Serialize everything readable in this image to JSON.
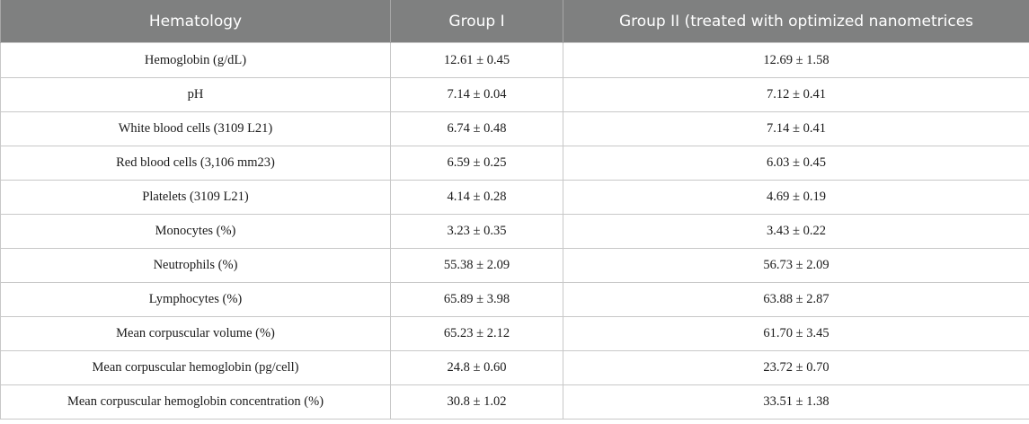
{
  "table": {
    "headers": [
      "Hematology",
      "Group I",
      "Group II (treated with optimized nanometrices"
    ],
    "rows": [
      [
        "Hemoglobin (g/dL)",
        "12.61 ± 0.45",
        "12.69 ± 1.58"
      ],
      [
        "pH",
        "7.14 ± 0.04",
        "7.12 ± 0.41"
      ],
      [
        "White blood cells (3109 L21)",
        "6.74 ± 0.48",
        "7.14 ± 0.41"
      ],
      [
        "Red blood cells (3,106 mm23)",
        "6.59 ± 0.25",
        "6.03 ± 0.45"
      ],
      [
        "Platelets (3109 L21)",
        "4.14 ± 0.28",
        "4.69 ± 0.19"
      ],
      [
        "Monocytes (%)",
        "3.23 ± 0.35",
        "3.43 ± 0.22"
      ],
      [
        "Neutrophils (%)",
        "55.38 ± 2.09",
        "56.73 ± 2.09"
      ],
      [
        "Lymphocytes (%)",
        "65.89 ± 3.98",
        "63.88 ± 2.87"
      ],
      [
        "Mean corpuscular volume (%)",
        "65.23 ± 2.12",
        "61.70 ± 3.45"
      ],
      [
        "Mean corpuscular hemoglobin (pg/cell)",
        "24.8 ± 0.60",
        "23.72 ± 0.70"
      ],
      [
        "Mean corpuscular hemoglobin concentration (%)",
        "30.8 ± 1.02",
        "33.51 ± 1.38"
      ]
    ]
  },
  "colors": {
    "header_background": "#7f8080",
    "header_text": "#ffffff",
    "grid_lines": "#c8c8c8"
  }
}
